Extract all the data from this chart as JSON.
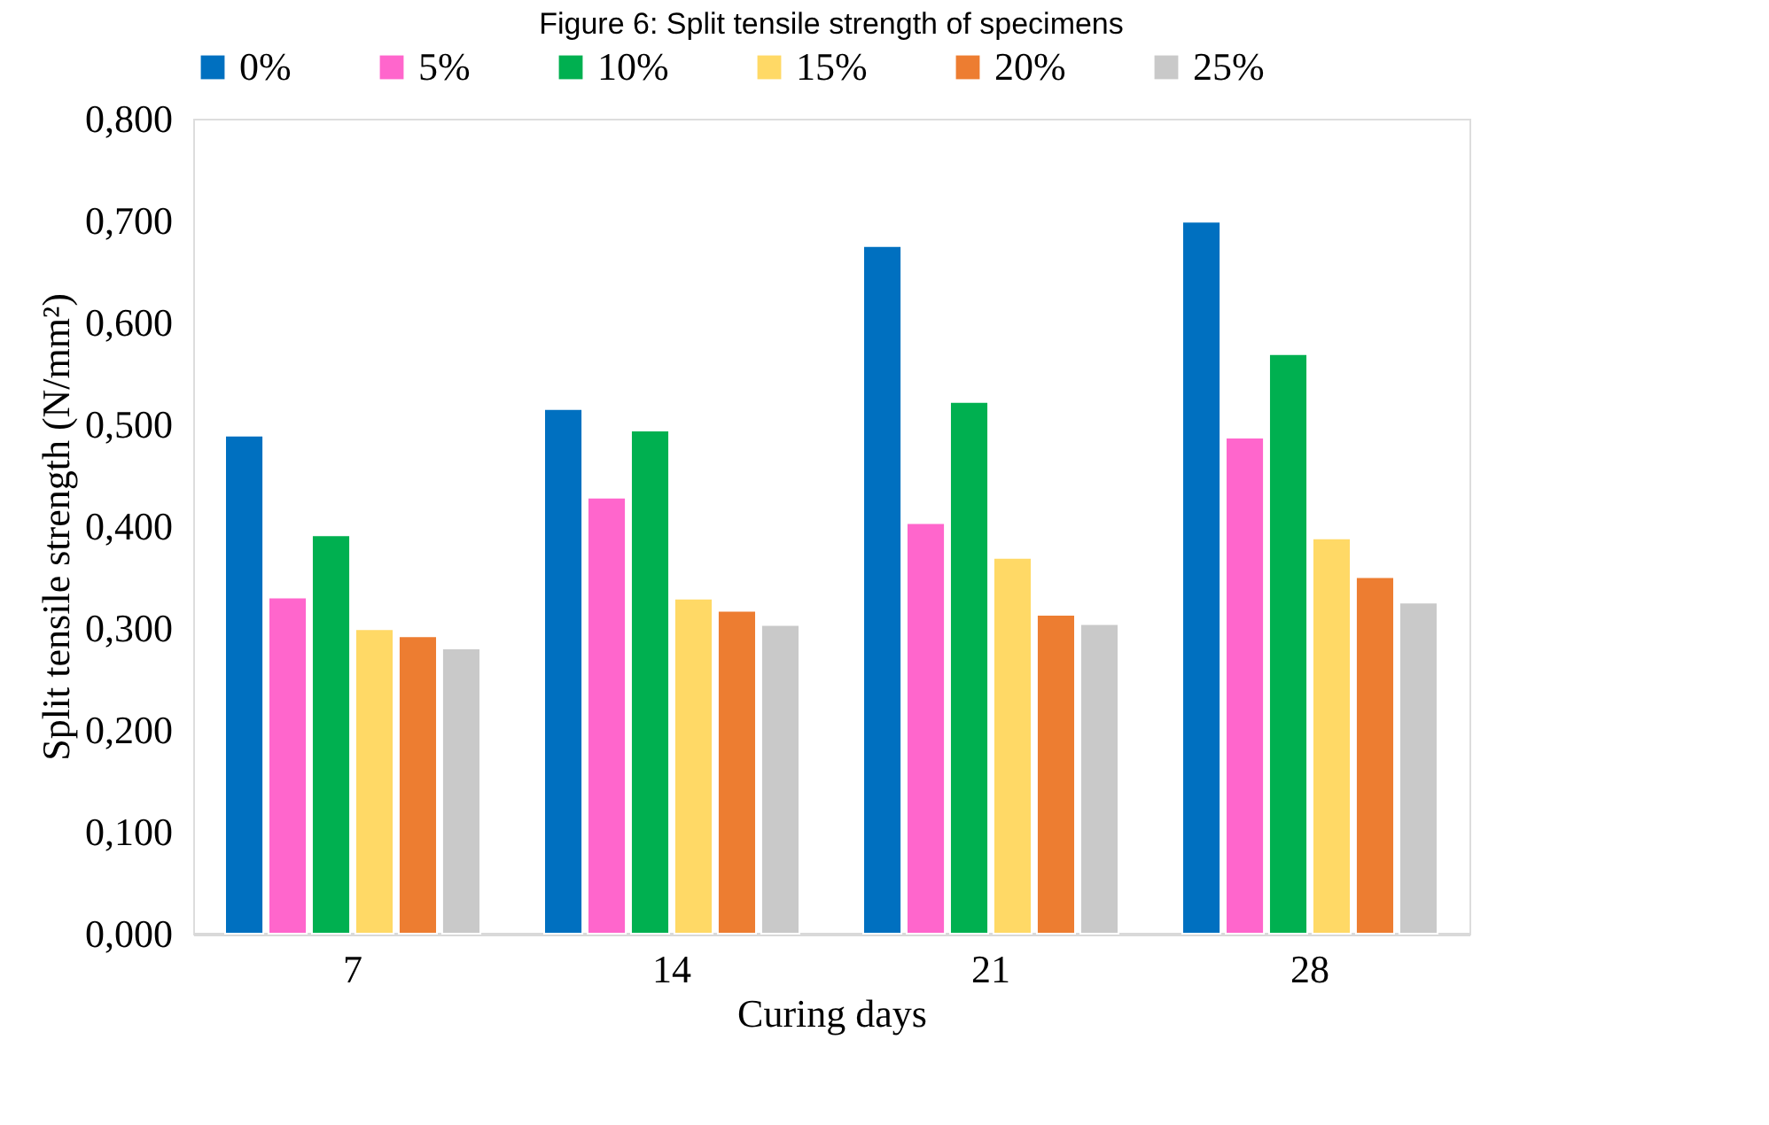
{
  "chart_data": {
    "type": "bar",
    "title": "Figure 6: Split tensile strength of specimens",
    "xlabel": "Curing days",
    "ylabel": "Split tensile strength (N/mm²)",
    "categories": [
      "7",
      "14",
      "21",
      "28"
    ],
    "series": [
      {
        "name": "0%",
        "color": "#0070c0",
        "values": [
          0.489,
          0.515,
          0.675,
          0.699
        ]
      },
      {
        "name": "5%",
        "color": "#ff66cc",
        "values": [
          0.33,
          0.428,
          0.403,
          0.487
        ]
      },
      {
        "name": "10%",
        "color": "#00b050",
        "values": [
          0.391,
          0.494,
          0.522,
          0.569
        ]
      },
      {
        "name": "15%",
        "color": "#ffd966",
        "values": [
          0.299,
          0.329,
          0.369,
          0.388
        ]
      },
      {
        "name": "20%",
        "color": "#ed7d31",
        "values": [
          0.292,
          0.317,
          0.313,
          0.35
        ]
      },
      {
        "name": "25%",
        "color": "#c9c9c9",
        "values": [
          0.28,
          0.303,
          0.304,
          0.325
        ]
      }
    ],
    "ylim": [
      0,
      0.8
    ],
    "yticks": [
      {
        "value": 0,
        "label": "0,000"
      },
      {
        "value": 0.1,
        "label": "0,100"
      },
      {
        "value": 0.2,
        "label": "0,200"
      },
      {
        "value": 0.3,
        "label": "0,300"
      },
      {
        "value": 0.4,
        "label": "0,400"
      },
      {
        "value": 0.5,
        "label": "0,500"
      },
      {
        "value": 0.6,
        "label": "0,600"
      },
      {
        "value": 0.7,
        "label": "0,700"
      },
      {
        "value": 0.8,
        "label": "0,800"
      }
    ],
    "grid": false,
    "legend": "top"
  }
}
